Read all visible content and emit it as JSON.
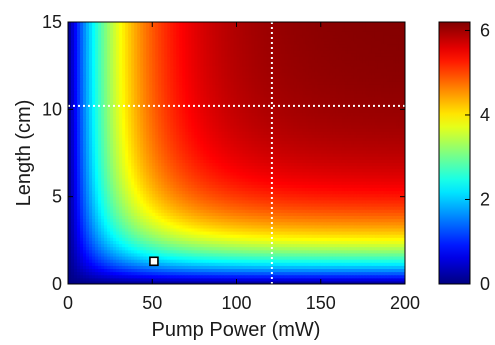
{
  "chart_data": {
    "type": "heatmap",
    "title": "",
    "xlabel": "Pump Power (mW)",
    "ylabel": "Length (cm)",
    "xlim": [
      0,
      200
    ],
    "ylim": [
      0,
      15
    ],
    "x_ticks": [
      0,
      50,
      100,
      150,
      200
    ],
    "y_ticks": [
      0,
      5,
      10,
      15
    ],
    "colorbar": {
      "range": [
        0,
        6.2
      ],
      "ticks": [
        0,
        2,
        4,
        6
      ],
      "colormap": "jet"
    },
    "surface_model": {
      "description_values": "z = 6.2 * (1 - exp(-P / 32)) * (1 - exp(-L / 2.6))",
      "P_scale_mW": 32,
      "L_scale_cm": 2.6,
      "z_max": 6.2
    },
    "reference_lines": [
      {
        "orientation": "vertical",
        "x": 121,
        "style": "dotted",
        "color": "#ffffff"
      },
      {
        "orientation": "horizontal",
        "y": 10.2,
        "style": "dotted",
        "color": "#ffffff"
      }
    ],
    "markers": [
      {
        "x": 51,
        "y": 1.3,
        "shape": "square",
        "fill": "#ffffff",
        "stroke": "#000000"
      }
    ]
  }
}
